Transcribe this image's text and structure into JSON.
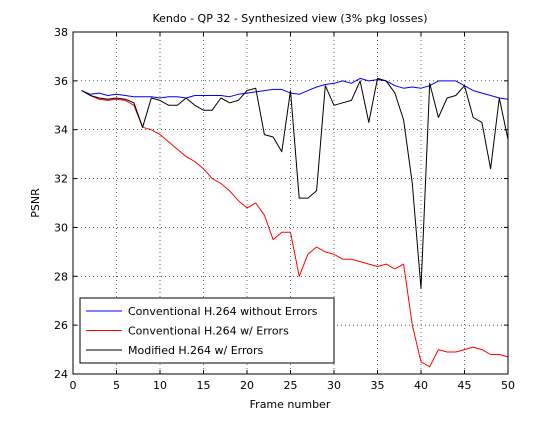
{
  "chart_data": {
    "type": "line",
    "title": "Kendo - QP 32 - Synthesized view (3% pkg losses)",
    "xlabel": "Frame number",
    "ylabel": "PSNR",
    "xlim": [
      0,
      50
    ],
    "ylim": [
      24,
      38
    ],
    "xticks": [
      0,
      5,
      10,
      15,
      20,
      25,
      30,
      35,
      40,
      45,
      50
    ],
    "yticks": [
      24,
      26,
      28,
      30,
      32,
      34,
      36,
      38
    ],
    "grid": true,
    "legend_position": "bottom-left",
    "series": [
      {
        "name": "Conventional H.264 without Errors",
        "color": "#0000ff",
        "x": [
          1,
          2,
          3,
          4,
          5,
          6,
          7,
          8,
          9,
          10,
          11,
          12,
          13,
          14,
          15,
          16,
          17,
          18,
          19,
          20,
          21,
          22,
          23,
          24,
          25,
          26,
          27,
          28,
          29,
          30,
          31,
          32,
          33,
          34,
          35,
          36,
          37,
          38,
          39,
          40,
          41,
          42,
          43,
          44,
          45,
          46,
          47,
          48,
          49,
          50
        ],
        "y": [
          35.6,
          35.45,
          35.5,
          35.4,
          35.45,
          35.4,
          35.35,
          35.35,
          35.35,
          35.3,
          35.35,
          35.35,
          35.3,
          35.4,
          35.4,
          35.4,
          35.4,
          35.35,
          35.45,
          35.5,
          35.55,
          35.6,
          35.65,
          35.65,
          35.5,
          35.45,
          35.6,
          35.75,
          35.85,
          35.9,
          36.0,
          35.9,
          36.1,
          36.0,
          36.05,
          36.0,
          35.8,
          35.7,
          35.75,
          35.7,
          35.8,
          36.0,
          36.0,
          36.0,
          35.8,
          35.6,
          35.5,
          35.4,
          35.3,
          35.25
        ]
      },
      {
        "name": "Conventional H.264 w/ Errors",
        "color": "#ff0000",
        "x": [
          1,
          2,
          3,
          4,
          5,
          6,
          7,
          8,
          9,
          10,
          11,
          12,
          13,
          14,
          15,
          16,
          17,
          18,
          19,
          20,
          21,
          22,
          23,
          24,
          25,
          26,
          27,
          28,
          29,
          30,
          31,
          32,
          33,
          34,
          35,
          36,
          37,
          38,
          39,
          40,
          41,
          42,
          43,
          44,
          45,
          46,
          47,
          48,
          49,
          50
        ],
        "y": [
          35.6,
          35.4,
          35.25,
          35.2,
          35.25,
          35.2,
          35.0,
          34.1,
          34.0,
          33.8,
          33.5,
          33.2,
          32.9,
          32.7,
          32.4,
          32.0,
          31.8,
          31.5,
          31.1,
          30.8,
          31.0,
          30.5,
          29.5,
          29.8,
          29.8,
          28.0,
          28.9,
          29.2,
          29.0,
          28.9,
          28.7,
          28.7,
          28.6,
          28.5,
          28.4,
          28.5,
          28.3,
          28.5,
          26.0,
          24.5,
          24.3,
          25.0,
          24.9,
          24.9,
          25.0,
          25.1,
          25.0,
          24.8,
          24.8,
          24.7
        ]
      },
      {
        "name": "Modified H.264 w/ Errors",
        "color": "#000000",
        "x": [
          1,
          2,
          3,
          4,
          5,
          6,
          7,
          8,
          9,
          10,
          11,
          12,
          13,
          14,
          15,
          16,
          17,
          18,
          19,
          20,
          21,
          22,
          23,
          24,
          25,
          26,
          27,
          28,
          29,
          30,
          31,
          32,
          33,
          34,
          35,
          36,
          37,
          38,
          39,
          40,
          41,
          42,
          43,
          44,
          45,
          46,
          47,
          48,
          49,
          50
        ],
        "y": [
          35.6,
          35.4,
          35.3,
          35.25,
          35.3,
          35.25,
          35.1,
          34.1,
          35.3,
          35.2,
          35.0,
          35.0,
          35.3,
          35.0,
          34.8,
          34.8,
          35.3,
          35.1,
          35.2,
          35.6,
          35.7,
          33.8,
          33.7,
          33.1,
          35.6,
          31.2,
          31.2,
          31.5,
          35.8,
          35.0,
          35.1,
          35.2,
          36.0,
          34.3,
          36.1,
          36.0,
          35.5,
          34.4,
          31.8,
          27.5,
          35.9,
          34.5,
          35.3,
          35.4,
          35.8,
          34.5,
          34.3,
          32.4,
          35.3,
          33.6
        ]
      }
    ]
  }
}
